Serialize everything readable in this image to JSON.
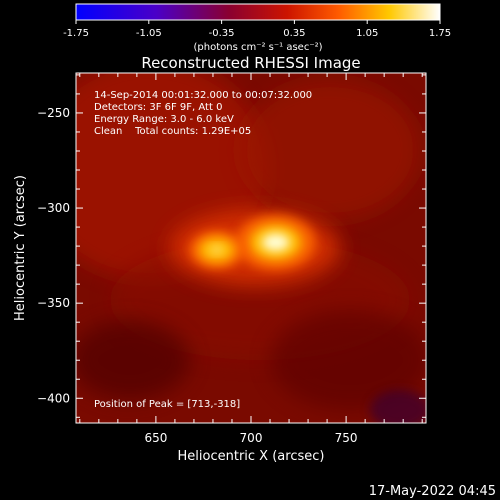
{
  "colorbar": {
    "ticks": [
      "-1.75",
      "-1.05",
      "-0.35",
      "0.35",
      "1.05",
      "1.75"
    ],
    "unit_label": "(photons cm⁻² s⁻¹ asec⁻²)",
    "range": [
      -1.75,
      1.75
    ]
  },
  "chart_data": {
    "type": "heatmap",
    "title": "Reconstructed RHESSI Image",
    "xlabel": "Heliocentric X (arcsec)",
    "ylabel": "Heliocentric Y (arcsec)",
    "xlim": [
      608,
      792
    ],
    "ylim": [
      -413,
      -229
    ],
    "x_ticks": [
      650,
      700,
      750
    ],
    "y_ticks": [
      -250,
      -300,
      -350,
      -400
    ],
    "sources": [
      {
        "x": 713,
        "y": -318,
        "peak": 1.75
      },
      {
        "x": 682,
        "y": -322,
        "peak": 1.2
      }
    ],
    "annotations": [
      "14-Sep-2014 00:01:32.000 to 00:07:32.000",
      "Detectors: 3F 6F 9F, Att 0",
      "Energy Range: 3.0 - 6.0 keV",
      "Clean    Total counts: 1.29E+05"
    ],
    "peak_text": "Position of Peak = [713,-318]"
  },
  "footer_date": "17-May-2022 04:45"
}
